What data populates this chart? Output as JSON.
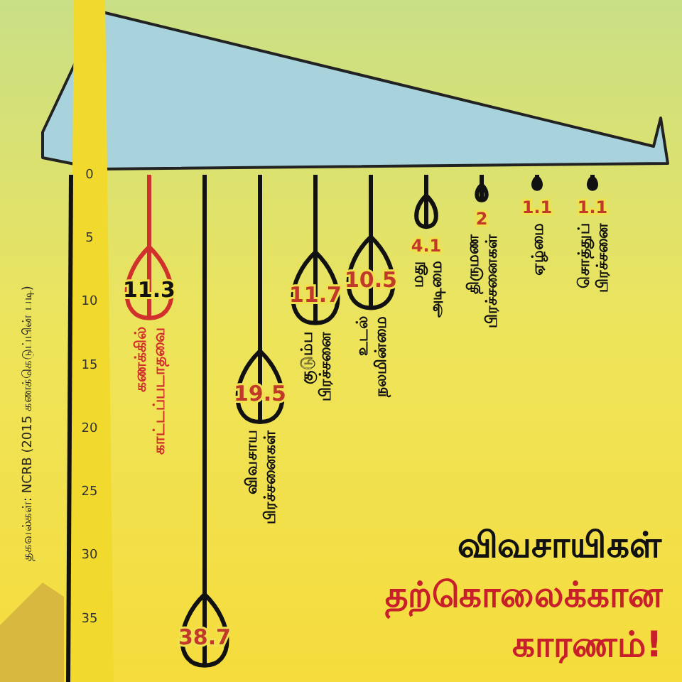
{
  "chart_data": {
    "type": "bar",
    "title": "விவசாயிகள் தற்கொலைக்கான காரணம்!",
    "categories": [
      "கணக்கில் காட்டப்படாதவை",
      null,
      "விவசாய பிரச்சனைகள்",
      "குடும்ப பிரச்சனை",
      "உடல் நலமின்மை",
      "மது அடிமை",
      "திருமண பிரச்சனைகள்",
      "ஏழ்மை",
      "சொத்துப் பிரச்சனை"
    ],
    "values": [
      11.3,
      38.7,
      19.5,
      11.7,
      10.5,
      4.1,
      2,
      1.1,
      1.1
    ],
    "colors": [
      "#d0312d",
      "#111111",
      "#111111",
      "#111111",
      "#111111",
      "#111111",
      "#111111",
      "#111111",
      "#111111"
    ],
    "ylim": [
      40,
      0
    ],
    "yticks": [
      0,
      5,
      10,
      15,
      20,
      25,
      30,
      35
    ],
    "data_labels": true,
    "annotations": [
      "தகவல்கள்: NCRB (2015 கணக்கெடுப்பின் படி)"
    ]
  }
}
